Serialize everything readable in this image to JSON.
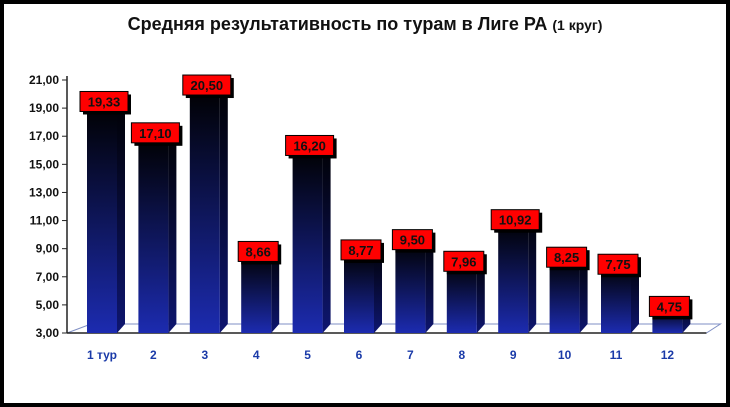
{
  "title": "Средняя результативность по турам в Лиге РА",
  "title_suffix": "(1 круг)",
  "chart_data": {
    "type": "bar",
    "title": "Средняя результативность по турам в Лиге РА (1 круг)",
    "xlabel": "",
    "ylabel": "",
    "categories": [
      "1 тур",
      "2",
      "3",
      "4",
      "5",
      "6",
      "7",
      "8",
      "9",
      "10",
      "11",
      "12"
    ],
    "values": [
      19.33,
      17.1,
      20.5,
      8.66,
      16.2,
      8.77,
      9.5,
      7.96,
      10.92,
      8.25,
      7.75,
      4.75
    ],
    "value_labels": [
      "19,33",
      "17,10",
      "20,50",
      "8,66",
      "16,20",
      "8,77",
      "9,50",
      "7,96",
      "10,92",
      "8,25",
      "7,75",
      "4,75"
    ],
    "ylim": [
      3,
      21
    ],
    "yticks": [
      "3,00",
      "5,00",
      "7,00",
      "9,00",
      "11,00",
      "13,00",
      "15,00",
      "17,00",
      "19,00",
      "21,00"
    ],
    "grid": false,
    "legend": "none",
    "colors": {
      "bar_top": "#000000",
      "bar_bottom": "#1c2bb0",
      "label_bg": "#ff0000",
      "label_border": "#000000"
    }
  }
}
